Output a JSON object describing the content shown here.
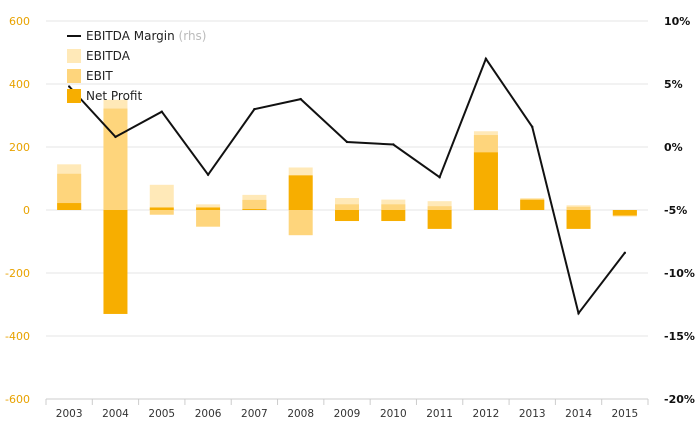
{
  "chart_data": {
    "type": "bar",
    "categories": [
      "2003",
      "2004",
      "2005",
      "2006",
      "2007",
      "2008",
      "2009",
      "2010",
      "2011",
      "2012",
      "2013",
      "2014",
      "2015"
    ],
    "series": [
      {
        "name": "EBITDA",
        "kind": "bar",
        "axis": "left",
        "color": "#ffe9b8",
        "values": [
          145,
          350,
          80,
          18,
          48,
          135,
          38,
          33,
          28,
          250,
          38,
          15,
          -20
        ]
      },
      {
        "name": "EBIT",
        "kind": "bar",
        "axis": "left",
        "color": "#fed57c",
        "values": [
          115,
          322,
          -15,
          -53,
          32,
          -80,
          18,
          18,
          12,
          238,
          32,
          10,
          -20
        ]
      },
      {
        "name": "Net Profit",
        "kind": "bar",
        "axis": "left",
        "color": "#f7ae00",
        "values": [
          22,
          -330,
          8,
          8,
          3,
          110,
          -35,
          -35,
          -60,
          183,
          33,
          -60,
          -17
        ]
      },
      {
        "name": "EBITDA Margin",
        "kind": "line",
        "axis": "right",
        "color": "#111111",
        "values": [
          4.8,
          0.8,
          2.8,
          -2.2,
          3.0,
          3.8,
          0.4,
          0.2,
          -2.4,
          7.0,
          1.6,
          -13.2,
          -8.4
        ]
      }
    ],
    "legend": [
      {
        "label": "EBITDA Margin",
        "suffix": "(rhs)",
        "marker": "line",
        "color": "#111111"
      },
      {
        "label": "EBITDA",
        "suffix": "",
        "marker": "square",
        "color": "#ffe9b8"
      },
      {
        "label": "EBIT",
        "suffix": "",
        "marker": "square",
        "color": "#fed57c"
      },
      {
        "label": "Net Profit",
        "suffix": "",
        "marker": "square",
        "color": "#f7ae00"
      }
    ],
    "y_left": {
      "range": [
        -600,
        600
      ],
      "ticks": [
        600,
        400,
        200,
        0,
        -200,
        -400,
        -600
      ],
      "labels": [
        "600",
        "400",
        "200",
        "0",
        "-200",
        "-400",
        "-600"
      ]
    },
    "y_right": {
      "range": [
        -20,
        10
      ],
      "ticks": [
        10,
        5,
        0,
        -5,
        -10,
        -15,
        -20
      ],
      "labels": [
        "10%",
        "5%",
        "0%",
        "-5%",
        "-10%",
        "-15%",
        "-20%"
      ]
    },
    "grid": true,
    "legend_position": "top-left",
    "title": "",
    "xlabel": "",
    "ylabel": ""
  }
}
